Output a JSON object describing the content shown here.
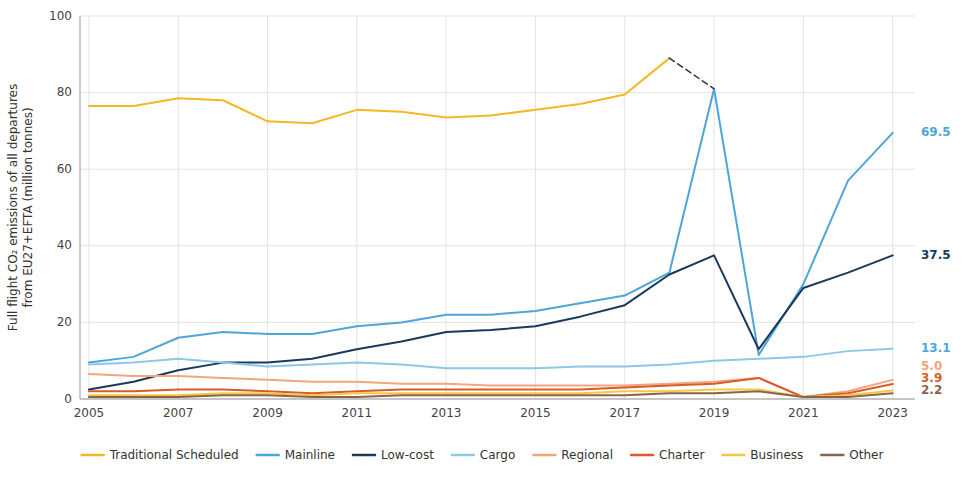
{
  "chart_data": {
    "type": "line",
    "ylabel": "Full flight CO₂ emissions of all departures\nfrom EU27+EFTA (million tonnes)",
    "x": [
      2005,
      2006,
      2007,
      2008,
      2009,
      2010,
      2011,
      2012,
      2013,
      2014,
      2015,
      2016,
      2017,
      2018,
      2019,
      2020,
      2021,
      2022,
      2023
    ],
    "series": [
      {
        "name": "Traditional Scheduled",
        "color": "#F5B822",
        "values": [
          76.5,
          76.5,
          78.5,
          78.0,
          72.5,
          72.0,
          75.5,
          75.0,
          73.5,
          74.0,
          75.5,
          77.0,
          79.5,
          89.0,
          null,
          null,
          null,
          null,
          null
        ]
      },
      {
        "name": "Mainline",
        "color": "#4DA6D8",
        "values": [
          9.5,
          11.0,
          16.0,
          17.5,
          17.0,
          17.0,
          19.0,
          20.0,
          22.0,
          22.0,
          23.0,
          25.0,
          27.0,
          33.0,
          81.0,
          11.5,
          30.0,
          57.0,
          69.5
        ]
      },
      {
        "name": "Low-cost",
        "color": "#1A3A5C",
        "values": [
          2.5,
          4.5,
          7.5,
          9.5,
          9.5,
          10.5,
          13.0,
          15.0,
          17.5,
          18.0,
          19.0,
          21.5,
          24.5,
          32.5,
          37.5,
          13.0,
          29.0,
          33.0,
          37.5
        ]
      },
      {
        "name": "Cargo",
        "color": "#8EC8E8",
        "values": [
          9.0,
          9.5,
          10.5,
          9.5,
          8.5,
          9.0,
          9.5,
          9.0,
          8.0,
          8.0,
          8.0,
          8.5,
          8.5,
          9.0,
          10.0,
          10.5,
          11.0,
          12.5,
          13.1
        ]
      },
      {
        "name": "Regional",
        "color": "#F4A57A",
        "values": [
          6.5,
          6.0,
          6.0,
          5.5,
          5.0,
          4.5,
          4.5,
          4.0,
          4.0,
          3.5,
          3.5,
          3.5,
          3.5,
          4.0,
          4.5,
          5.5,
          0.5,
          2.0,
          5.0
        ]
      },
      {
        "name": "Charter",
        "color": "#D95B2A",
        "values": [
          2.0,
          2.0,
          2.5,
          2.5,
          2.0,
          1.5,
          2.0,
          2.5,
          2.5,
          2.5,
          2.5,
          2.5,
          3.0,
          3.5,
          4.0,
          5.5,
          0.5,
          1.5,
          3.9
        ]
      },
      {
        "name": "Business",
        "color": "#F5C842",
        "values": [
          1.0,
          1.0,
          1.0,
          1.5,
          1.5,
          1.0,
          1.5,
          1.5,
          1.5,
          1.5,
          1.5,
          1.5,
          2.0,
          2.0,
          2.5,
          2.5,
          0.5,
          1.0,
          2.2
        ]
      },
      {
        "name": "Other",
        "color": "#8B6347",
        "values": [
          0.5,
          0.5,
          0.5,
          1.0,
          1.0,
          0.5,
          0.5,
          1.0,
          1.0,
          1.0,
          1.0,
          1.0,
          1.0,
          1.5,
          1.5,
          2.0,
          0.5,
          0.5,
          1.5
        ]
      },
      {
        "color": "#333333",
        "line_style": "dashed",
        "values": [
          null,
          null,
          null,
          null,
          null,
          null,
          null,
          null,
          null,
          null,
          null,
          null,
          null,
          89.0,
          81.0,
          null,
          null,
          null,
          null
        ]
      }
    ],
    "annotations": [
      {
        "y": 69.5,
        "text": "69.5",
        "color": "#4DA6D8"
      },
      {
        "y": 37.5,
        "text": "37.5",
        "color": "#1A3A5C"
      },
      {
        "y": 13.1,
        "text": "13.1",
        "color": "#4DA6D8"
      },
      {
        "y": 5.0,
        "text": "5.0",
        "color": "#F4A57A"
      },
      {
        "y": 3.9,
        "text": "3.9",
        "color": "#D95B2A"
      },
      {
        "y": 2.2,
        "text": "2.2",
        "color": "#8B6347"
      }
    ],
    "xlim": [
      2004.8,
      2023.5
    ],
    "xticks": [
      2005,
      2007,
      2009,
      2011,
      2013,
      2015,
      2017,
      2019,
      2021,
      2023
    ],
    "ylim": [
      0,
      100
    ],
    "yticks": [
      0,
      20,
      40,
      60,
      80,
      100
    ],
    "grid": true,
    "legend": "bottom"
  }
}
